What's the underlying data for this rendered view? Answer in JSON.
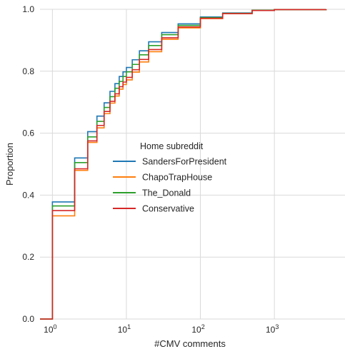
{
  "chart_data": {
    "type": "line",
    "subtype": "ecdf-step",
    "title": "",
    "xlabel": "#CMV comments",
    "ylabel": "Proportion",
    "xscale": "log",
    "xlim": [
      0.68,
      9000
    ],
    "ylim": [
      0,
      1
    ],
    "grid": true,
    "x_ticks": [
      {
        "value": 1,
        "base": "10",
        "exp": "0"
      },
      {
        "value": 10,
        "base": "10",
        "exp": "1"
      },
      {
        "value": 100,
        "base": "10",
        "exp": "2"
      },
      {
        "value": 1000,
        "base": "10",
        "exp": "3"
      }
    ],
    "y_ticks": [
      {
        "value": 0,
        "label": "0.0"
      },
      {
        "value": 0.2,
        "label": "0.2"
      },
      {
        "value": 0.4,
        "label": "0.4"
      },
      {
        "value": 0.6,
        "label": "0.6"
      },
      {
        "value": 0.8,
        "label": "0.8"
      },
      {
        "value": 1,
        "label": "1.0"
      }
    ],
    "legend": {
      "title": "Home subreddit",
      "placement": "center"
    },
    "series": [
      {
        "name": "SandersForPresident",
        "color": "#1f77b4",
        "x": [
          1,
          2,
          3,
          4,
          5,
          6,
          7,
          8,
          9,
          10,
          12,
          15,
          20,
          30,
          50,
          100,
          200,
          500,
          1000,
          5000
        ],
        "y": [
          0.378,
          0.52,
          0.605,
          0.655,
          0.698,
          0.735,
          0.76,
          0.783,
          0.798,
          0.812,
          0.837,
          0.866,
          0.895,
          0.925,
          0.953,
          0.975,
          0.988,
          0.997,
          0.999,
          1.0
        ]
      },
      {
        "name": "ChapoTrapHouse",
        "color": "#ff7f0e",
        "x": [
          1,
          2,
          3,
          4,
          5,
          6,
          7,
          8,
          9,
          10,
          12,
          15,
          20,
          30,
          50,
          100,
          200,
          500,
          1000,
          5000
        ],
        "y": [
          0.333,
          0.48,
          0.57,
          0.617,
          0.663,
          0.697,
          0.72,
          0.742,
          0.757,
          0.772,
          0.797,
          0.83,
          0.863,
          0.903,
          0.94,
          0.97,
          0.986,
          0.996,
          0.999,
          1.0
        ]
      },
      {
        "name": "The_Donald",
        "color": "#2ca02c",
        "x": [
          1,
          2,
          3,
          4,
          5,
          6,
          7,
          8,
          9,
          10,
          12,
          15,
          20,
          30,
          50,
          100,
          200,
          500,
          1000,
          5000
        ],
        "y": [
          0.365,
          0.505,
          0.588,
          0.638,
          0.683,
          0.718,
          0.745,
          0.767,
          0.783,
          0.798,
          0.822,
          0.853,
          0.883,
          0.918,
          0.948,
          0.973,
          0.987,
          0.997,
          0.999,
          1.0
        ]
      },
      {
        "name": "Conservative",
        "color": "#d62728",
        "x": [
          1,
          2,
          3,
          4,
          5,
          6,
          7,
          8,
          9,
          10,
          12,
          15,
          20,
          30,
          50,
          100,
          200,
          500,
          1000,
          5000
        ],
        "y": [
          0.35,
          0.485,
          0.575,
          0.625,
          0.67,
          0.703,
          0.727,
          0.75,
          0.765,
          0.78,
          0.805,
          0.838,
          0.87,
          0.908,
          0.943,
          0.971,
          0.986,
          0.996,
          0.999,
          1.0
        ]
      }
    ]
  }
}
